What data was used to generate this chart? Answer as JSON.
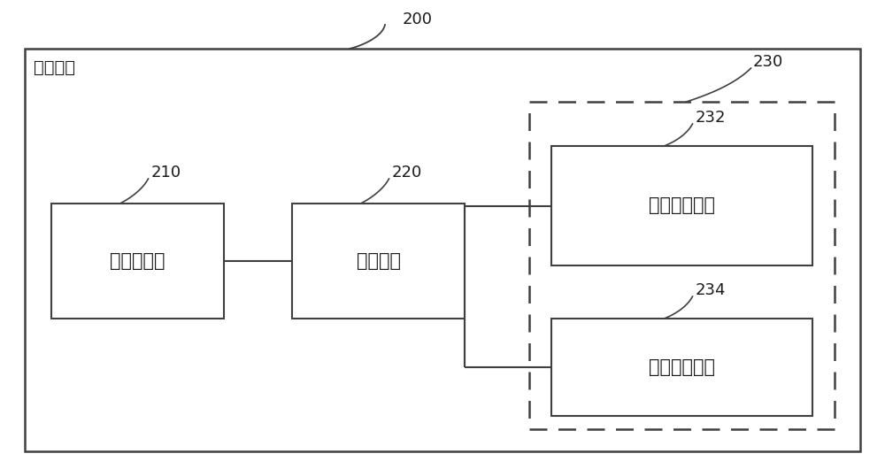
{
  "title": "射频模块",
  "outer_label": "200",
  "box_210_label": "功率放大器",
  "box_210_ref": "210",
  "box_220_label": "开关模组",
  "box_220_ref": "220",
  "box_230_ref": "230",
  "box_232_label": "第一天线单元",
  "box_232_ref": "232",
  "box_234_label": "第二天线单元",
  "box_234_ref": "234",
  "bg_color": "#ffffff",
  "box_color": "#ffffff",
  "line_color": "#404040",
  "text_color": "#1a1a1a",
  "font_size": 15,
  "ref_font_size": 13,
  "title_font_size": 14
}
